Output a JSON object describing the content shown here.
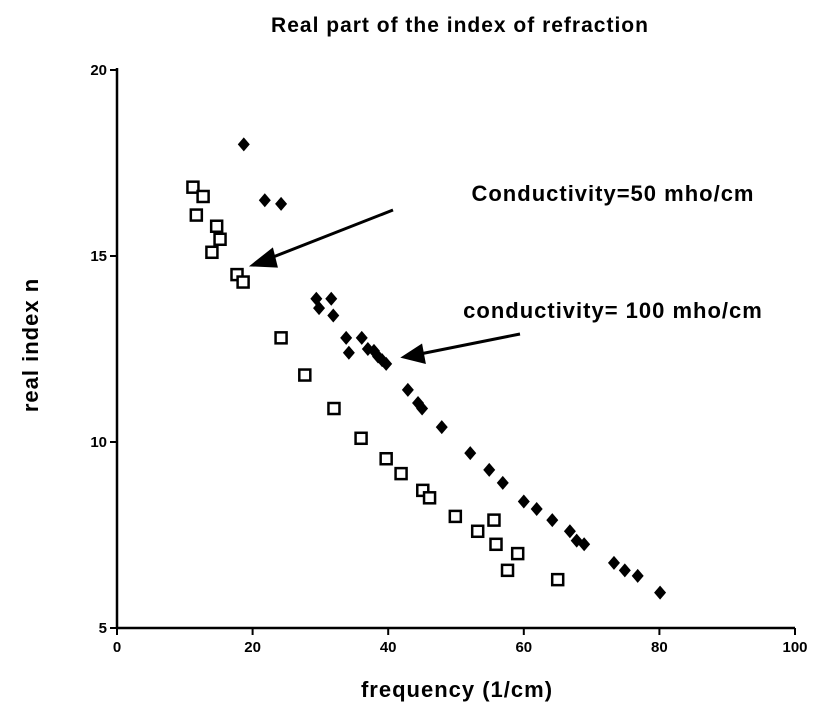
{
  "chart_data": {
    "type": "scatter",
    "title": "Real part of the index of refraction",
    "xlabel": "frequency  (1/cm)",
    "ylabel": "real index n",
    "xlim": [
      0,
      100
    ],
    "xticks": [
      0,
      20,
      40,
      60,
      80,
      100
    ],
    "ylim": [
      5,
      20
    ],
    "yticks": [
      5,
      10,
      15,
      20
    ],
    "series": [
      {
        "marker": "square",
        "color": "#000000",
        "x": [
          11.2,
          12.7,
          11.7,
          14.7,
          15.2,
          14.0,
          17.7,
          18.6,
          24.2,
          27.7,
          32.0,
          36.0,
          39.7,
          41.9,
          45.1,
          46.1,
          49.9,
          53.2,
          55.6,
          55.9,
          59.1,
          57.6,
          65.0
        ],
        "values": [
          16.85,
          16.6,
          16.1,
          15.8,
          15.45,
          15.1,
          14.5,
          14.3,
          12.8,
          11.8,
          10.9,
          10.1,
          9.55,
          9.15,
          8.7,
          8.5,
          8.0,
          7.6,
          7.9,
          7.25,
          7.0,
          6.55,
          6.3
        ]
      },
      {
        "marker": "diamond",
        "color": "#000000",
        "x": [
          18.7,
          21.8,
          24.2,
          29.4,
          29.8,
          31.6,
          31.9,
          33.8,
          34.2,
          36.1,
          37.0,
          37.9,
          38.5,
          39.1,
          39.7,
          42.9,
          44.4,
          45.0,
          47.9,
          52.1,
          54.9,
          56.9,
          60.0,
          61.9,
          64.2,
          66.8,
          67.8,
          68.9,
          73.3,
          74.9,
          76.8,
          80.1
        ],
        "values": [
          18.0,
          16.5,
          16.4,
          13.85,
          13.6,
          13.85,
          13.4,
          12.8,
          12.4,
          12.8,
          12.5,
          12.45,
          12.3,
          12.2,
          12.1,
          11.4,
          11.05,
          10.9,
          10.4,
          9.7,
          9.25,
          8.9,
          8.4,
          8.2,
          7.9,
          7.6,
          7.35,
          7.25,
          6.75,
          6.55,
          6.4,
          5.95
        ]
      }
    ],
    "annotations": [
      "Conductivity=50  mho/cm",
      "conductivity=  100  mho/cm"
    ]
  }
}
